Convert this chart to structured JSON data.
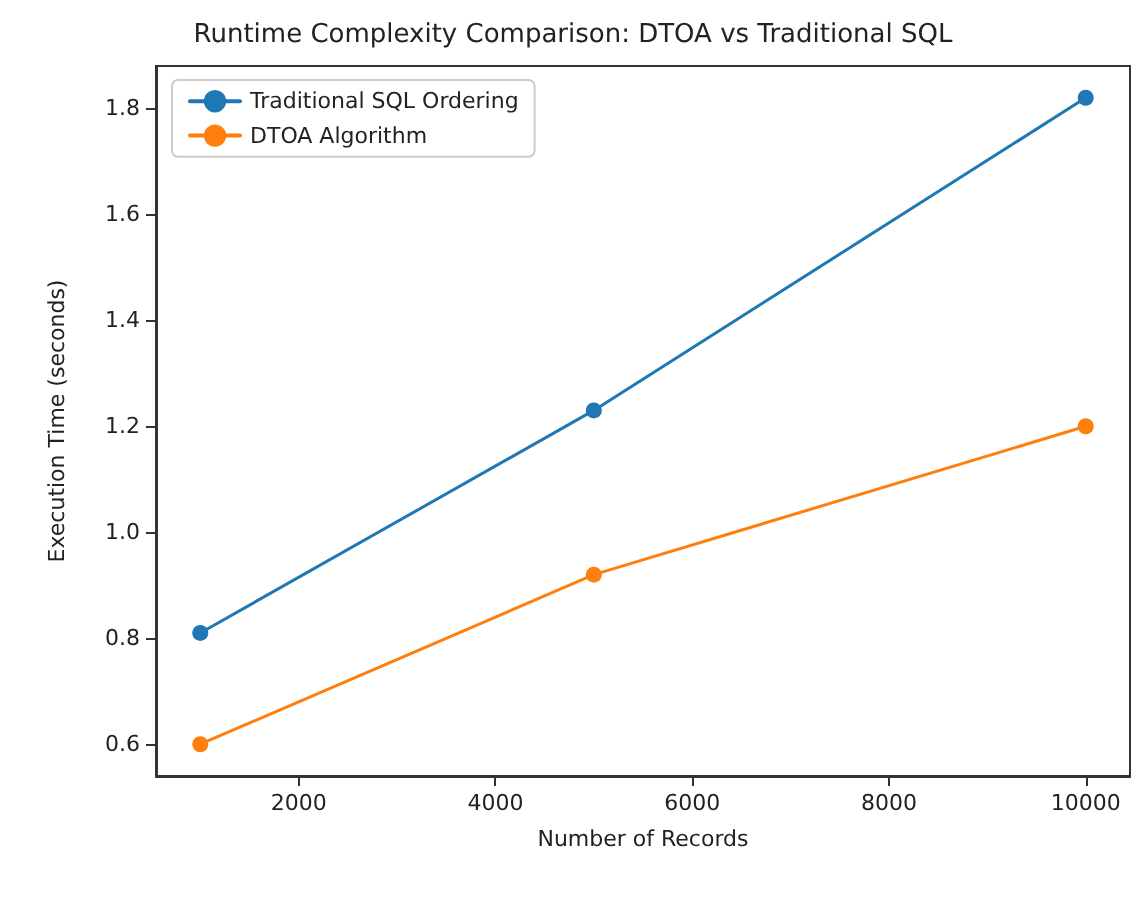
{
  "chart_data": {
    "type": "line",
    "title": "Runtime Complexity Comparison: DTOA vs Traditional SQL",
    "xlabel": "Number of Records",
    "ylabel": "Execution Time (seconds)",
    "x": [
      1000,
      5000,
      10000
    ],
    "series": [
      {
        "name": "Traditional SQL Ordering",
        "color": "#1f77b4",
        "values": [
          0.81,
          1.23,
          1.82
        ]
      },
      {
        "name": "DTOA Algorithm",
        "color": "#ff7f0e",
        "values": [
          0.6,
          0.92,
          1.2
        ]
      }
    ],
    "xlim": [
      550,
      10450
    ],
    "xticks": [
      2000,
      4000,
      6000,
      8000,
      10000
    ],
    "ylim": [
      0.54,
      1.88
    ],
    "yticks": [
      0.6,
      0.8,
      {
        "value": 1,
        "label": "1.0"
      },
      1.2,
      1.4,
      1.6,
      1.8
    ],
    "grid": false,
    "legend": "top left",
    "marker": "circle",
    "line_style": "solid"
  }
}
